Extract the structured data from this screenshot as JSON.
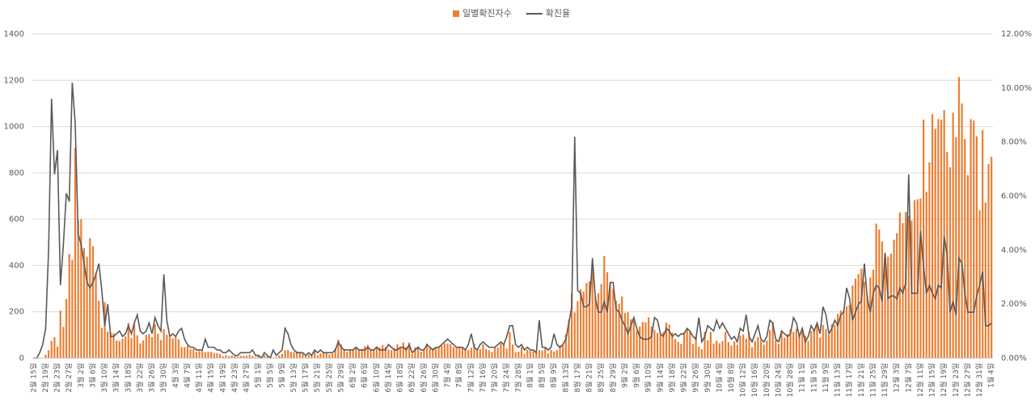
{
  "chart_data": {
    "type": "bar-line",
    "categories": [
      "2월 15일",
      null,
      null,
      null,
      "2월 19일",
      null,
      null,
      null,
      "2월 23일",
      null,
      null,
      null,
      "2월 27일",
      null,
      null,
      null,
      "3월 2일",
      null,
      null,
      null,
      "3월 6일",
      null,
      null,
      null,
      "3월 10일",
      null,
      null,
      null,
      "3월 14일",
      null,
      null,
      null,
      "3월 18일",
      null,
      null,
      null,
      "3월 22일",
      null,
      null,
      null,
      "3월 26일",
      null,
      null,
      null,
      "3월 30일",
      null,
      null,
      null,
      "4월 3일",
      null,
      null,
      null,
      "4월 7일",
      null,
      null,
      null,
      "4월 11일",
      null,
      null,
      null,
      "4월 15일",
      null,
      null,
      null,
      "4월 19일",
      null,
      null,
      null,
      "4월 23일",
      null,
      null,
      null,
      "4월 27일",
      null,
      null,
      null,
      "5월 1일",
      null,
      null,
      null,
      "5월 5일",
      null,
      null,
      null,
      "5월 9일",
      null,
      null,
      null,
      "5월 13일",
      null,
      null,
      null,
      "5월 17일",
      null,
      null,
      null,
      "5월 21일",
      null,
      null,
      null,
      "5월 25일",
      null,
      null,
      null,
      "5월 29일",
      null,
      null,
      null,
      "6월 2일",
      null,
      null,
      null,
      "6월 6일",
      null,
      null,
      null,
      "6월 10일",
      null,
      null,
      null,
      "6월 14일",
      null,
      null,
      null,
      "6월 18일",
      null,
      null,
      null,
      "6월 22일",
      null,
      null,
      null,
      "6월 26일",
      null,
      null,
      null,
      "6월 30일",
      null,
      null,
      null,
      "7월 4일",
      null,
      null,
      null,
      "7월 8일",
      null,
      null,
      null,
      "7월 12일",
      null,
      null,
      null,
      "7월 16일",
      null,
      null,
      null,
      "7월 20일",
      null,
      null,
      null,
      "7월 24일",
      null,
      null,
      null,
      "7월 28일",
      null,
      null,
      null,
      "8월 1일",
      null,
      null,
      null,
      "8월 5일",
      null,
      null,
      null,
      "8월 9일",
      null,
      null,
      null,
      "8월 13일",
      null,
      null,
      null,
      "8월 17일",
      null,
      null,
      null,
      "8월 21일",
      null,
      null,
      null,
      "8월 25일",
      null,
      null,
      null,
      "8월 29일",
      null,
      null,
      null,
      "9월 2일",
      null,
      null,
      null,
      "9월 6일",
      null,
      null,
      null,
      "9월 10일",
      null,
      null,
      null,
      "9월 14일",
      null,
      null,
      null,
      "9월 18일",
      null,
      null,
      null,
      "9월 22일",
      null,
      null,
      null,
      "9월 26일",
      null,
      null,
      null,
      "9월 30일",
      null,
      null,
      null,
      "10월 4일",
      null,
      null,
      null,
      "10월 8일",
      null,
      null,
      null,
      "10월 12일",
      null,
      null,
      null,
      "10월 16일",
      null,
      null,
      null,
      "10월 20일",
      null,
      null,
      null,
      "10월 24일",
      null,
      null,
      null,
      "10월 28일",
      null,
      null,
      null,
      "11월 1일",
      null,
      null,
      null,
      "11월 5일",
      null,
      null,
      null,
      "11월 9일",
      null,
      null,
      null,
      "11월 13일",
      null,
      null,
      null,
      "11월 17일",
      null,
      null,
      null,
      "11월 21일",
      null,
      null,
      null,
      "11월 25일",
      null,
      null,
      null,
      "11월 29일",
      null,
      null,
      null,
      "12월 3일",
      null,
      null,
      null,
      "12월 7일",
      null,
      null,
      null,
      "12월 11일",
      null,
      null,
      null,
      "12월 15일",
      null,
      null,
      null,
      "12월 19일",
      null,
      null,
      null,
      "12월 23일",
      null,
      null,
      null,
      "12월 27일",
      null,
      null,
      null,
      "12월 31일",
      null,
      null,
      null,
      "1월 4일"
    ],
    "series": [
      {
        "name": "일별확진자수",
        "color": "#ed7d31",
        "values": [
          0,
          0,
          0,
          1,
          15,
          34,
          75,
          90,
          50,
          205,
          135,
          255,
          450,
          425,
          909,
          595,
          600,
          476,
          438,
          518,
          483,
          367,
          248,
          131,
          242,
          114,
          110,
          107,
          76,
          74,
          84,
          93,
          152,
          87,
          147,
          98,
          64,
          76,
          100,
          104,
          91,
          146,
          105,
          78,
          125,
          101,
          89,
          86,
          94,
          81,
          47,
          47,
          53,
          39,
          39,
          27,
          30,
          32,
          25,
          27,
          27,
          22,
          22,
          18,
          8,
          13,
          9,
          11,
          8,
          6,
          10,
          10,
          10,
          14,
          9,
          4,
          9,
          6,
          13,
          8,
          3,
          2,
          4,
          12,
          18,
          34,
          35,
          27,
          26,
          29,
          27,
          19,
          13,
          15,
          13,
          32,
          12,
          20,
          23,
          25,
          16,
          19,
          40,
          79,
          58,
          39,
          27,
          35,
          38,
          49,
          39,
          39,
          51,
          57,
          38,
          38,
          50,
          45,
          56,
          49,
          37,
          34,
          43,
          59,
          49,
          67,
          48,
          67,
          17,
          46,
          51,
          28,
          39,
          62,
          42,
          42,
          43,
          51,
          54,
          63,
          63,
          61,
          48,
          44,
          50,
          45,
          35,
          35,
          44,
          62,
          33,
          39,
          60,
          39,
          34,
          26,
          45,
          45,
          63,
          59,
          41,
          113,
          58,
          25,
          28,
          48,
          18,
          36,
          31,
          30,
          23,
          34,
          33,
          43,
          20,
          36,
          28,
          34,
          54,
          56,
          103,
          166,
          279,
          197,
          246,
          297,
          288,
          324,
          332,
          397,
          266,
          280,
          320,
          441,
          371,
          323,
          299,
          248,
          235,
          267,
          195,
          198,
          168,
          167,
          119,
          136,
          156,
          155,
          176,
          136,
          121,
          109,
          106,
          113,
          153,
          145,
          110,
          82,
          70,
          61,
          110,
          125,
          114,
          61,
          95,
          50,
          38,
          113,
          77,
          113,
          63,
          75,
          64,
          73,
          114,
          69,
          54,
          72,
          58,
          97,
          102,
          84,
          110,
          47,
          73,
          91,
          76,
          58,
          76,
          121,
          155,
          77,
          61,
          119,
          88,
          103,
          125,
          114,
          127,
          96,
          124,
          97,
          75,
          118,
          125,
          145,
          89,
          143,
          126,
          100,
          146,
          143,
          191,
          205,
          208,
          223,
          230,
          313,
          343,
          363,
          386,
          330,
          271,
          349,
          382,
          581,
          555,
          504,
          450,
          438,
          451,
          511,
          540,
          629,
          583,
          631,
          615,
          594,
          682,
          686,
          689,
          1030,
          718,
          845,
          1054,
          990,
          1032,
          1029,
          1071,
          890,
          824,
          1060,
          955,
          1214,
          1100,
          946,
          790,
          1032,
          1026,
          958,
          638,
          985,
          672,
          838,
          869
        ]
      },
      {
        "name": "확진율",
        "color": "#595959",
        "axis": "y2",
        "values": [
          0,
          0,
          0.2,
          0.5,
          1.1,
          4.0,
          9.6,
          6.8,
          7.7,
          2.7,
          4.2,
          6.1,
          5.8,
          10.2,
          8.7,
          4.6,
          4.2,
          3.5,
          2.8,
          2.6,
          2.8,
          3.1,
          3.5,
          2.5,
          1.2,
          2.0,
          0.8,
          0.8,
          0.9,
          1.0,
          0.8,
          0.9,
          1.2,
          0.9,
          1.3,
          1.6,
          1.0,
          0.9,
          1.0,
          1.3,
          0.9,
          1.5,
          1.2,
          1.0,
          3.1,
          1.4,
          0.8,
          0.9,
          0.8,
          1.0,
          1.1,
          0.7,
          0.5,
          0.4,
          0.4,
          0.3,
          0.3,
          0.3,
          0.7,
          0.4,
          0.4,
          0.4,
          0.3,
          0.3,
          0.2,
          0.2,
          0.3,
          0.2,
          0.1,
          0.1,
          0.2,
          0.2,
          0.2,
          0.2,
          0.3,
          0.1,
          0.1,
          0.0,
          0.2,
          0.1,
          0.0,
          0.3,
          0.1,
          0.2,
          0.3,
          1.1,
          0.9,
          0.5,
          0.3,
          0.2,
          0.2,
          0.2,
          0.1,
          0.2,
          0.1,
          0.3,
          0.2,
          0.3,
          0.2,
          0.2,
          0.2,
          0.2,
          0.3,
          0.6,
          0.4,
          0.3,
          0.3,
          0.3,
          0.3,
          0.4,
          0.3,
          0.3,
          0.3,
          0.4,
          0.3,
          0.3,
          0.4,
          0.3,
          0.3,
          0.3,
          0.5,
          0.4,
          0.3,
          0.3,
          0.4,
          0.4,
          0.3,
          0.5,
          0.2,
          0.3,
          0.4,
          0.3,
          0.3,
          0.5,
          0.4,
          0.3,
          0.4,
          0.4,
          0.5,
          0.6,
          0.7,
          0.6,
          0.5,
          0.4,
          0.4,
          0.4,
          0.3,
          0.5,
          0.9,
          0.4,
          0.3,
          0.5,
          0.6,
          0.5,
          0.4,
          0.4,
          0.4,
          0.5,
          0.6,
          0.5,
          0.8,
          1.2,
          1.2,
          0.5,
          0.4,
          0.5,
          0.3,
          0.4,
          0.3,
          0.3,
          0.2,
          1.4,
          0.4,
          0.4,
          0.3,
          0.4,
          0.9,
          0.5,
          0.4,
          0.5,
          0.7,
          1.3,
          1.9,
          8.2,
          2.5,
          2.4,
          1.9,
          1.9,
          2.0,
          3.7,
          2.2,
          1.7,
          1.7,
          2.1,
          1.7,
          2.8,
          2.8,
          1.8,
          1.7,
          1.4,
          1.2,
          0.9,
          1.2,
          1.5,
          1.1,
          0.8,
          0.7,
          0.7,
          0.7,
          0.8,
          1.5,
          1.4,
          0.9,
          0.8,
          1.1,
          1.0,
          0.8,
          0.9,
          0.8,
          0.9,
          0.9,
          1.1,
          1.0,
          0.8,
          0.7,
          1.5,
          0.6,
          0.8,
          1.2,
          1.1,
          1.0,
          1.4,
          1.1,
          1.3,
          1.1,
          0.9,
          0.7,
          0.8,
          0.6,
          1.1,
          1.0,
          1.6,
          0.8,
          0.6,
          0.9,
          1.2,
          0.7,
          0.6,
          0.8,
          1.4,
          1.3,
          0.7,
          0.6,
          1.0,
          0.9,
          0.8,
          0.9,
          1.5,
          1.3,
          0.8,
          1.1,
          0.6,
          0.8,
          1.2,
          1.0,
          1.3,
          0.9,
          1.9,
          1.6,
          0.9,
          1.1,
          1.4,
          1.2,
          1.6,
          1.7,
          2.6,
          2.2,
          1.4,
          1.7,
          2.0,
          2.1,
          3.5,
          2.2,
          1.7,
          2.4,
          2.7,
          2.6,
          2.1,
          3.9,
          2.2,
          2.3,
          2.3,
          2.2,
          2.6,
          2.4,
          2.8,
          6.8,
          2.4,
          2.4,
          2.4,
          4.7,
          3.4,
          2.4,
          2.7,
          2.4,
          2.2,
          2.7,
          2.6,
          4.5,
          3.8,
          1.7,
          2.1,
          1.6,
          3.7,
          3.5,
          2.4,
          1.7,
          1.7,
          1.7,
          2.3,
          2.7,
          3.2,
          1.2,
          1.2,
          1.3
        ]
      }
    ],
    "ylim": [
      0,
      1400
    ],
    "yticks": [
      0,
      200,
      400,
      600,
      800,
      1000,
      1200,
      1400
    ],
    "y2lim": [
      0,
      12
    ],
    "y2ticks": [
      {
        "value": 0,
        "label": "0.00%"
      },
      {
        "value": 2,
        "label": "2.00%"
      },
      {
        "value": 4,
        "label": "4.00%"
      },
      {
        "value": 6,
        "label": "6.00%"
      },
      {
        "value": 8,
        "label": "8.00%"
      },
      {
        "value": 10,
        "label": "10.00%"
      },
      {
        "value": 12,
        "label": "12.00%"
      }
    ],
    "grid": true,
    "legend": "top"
  }
}
